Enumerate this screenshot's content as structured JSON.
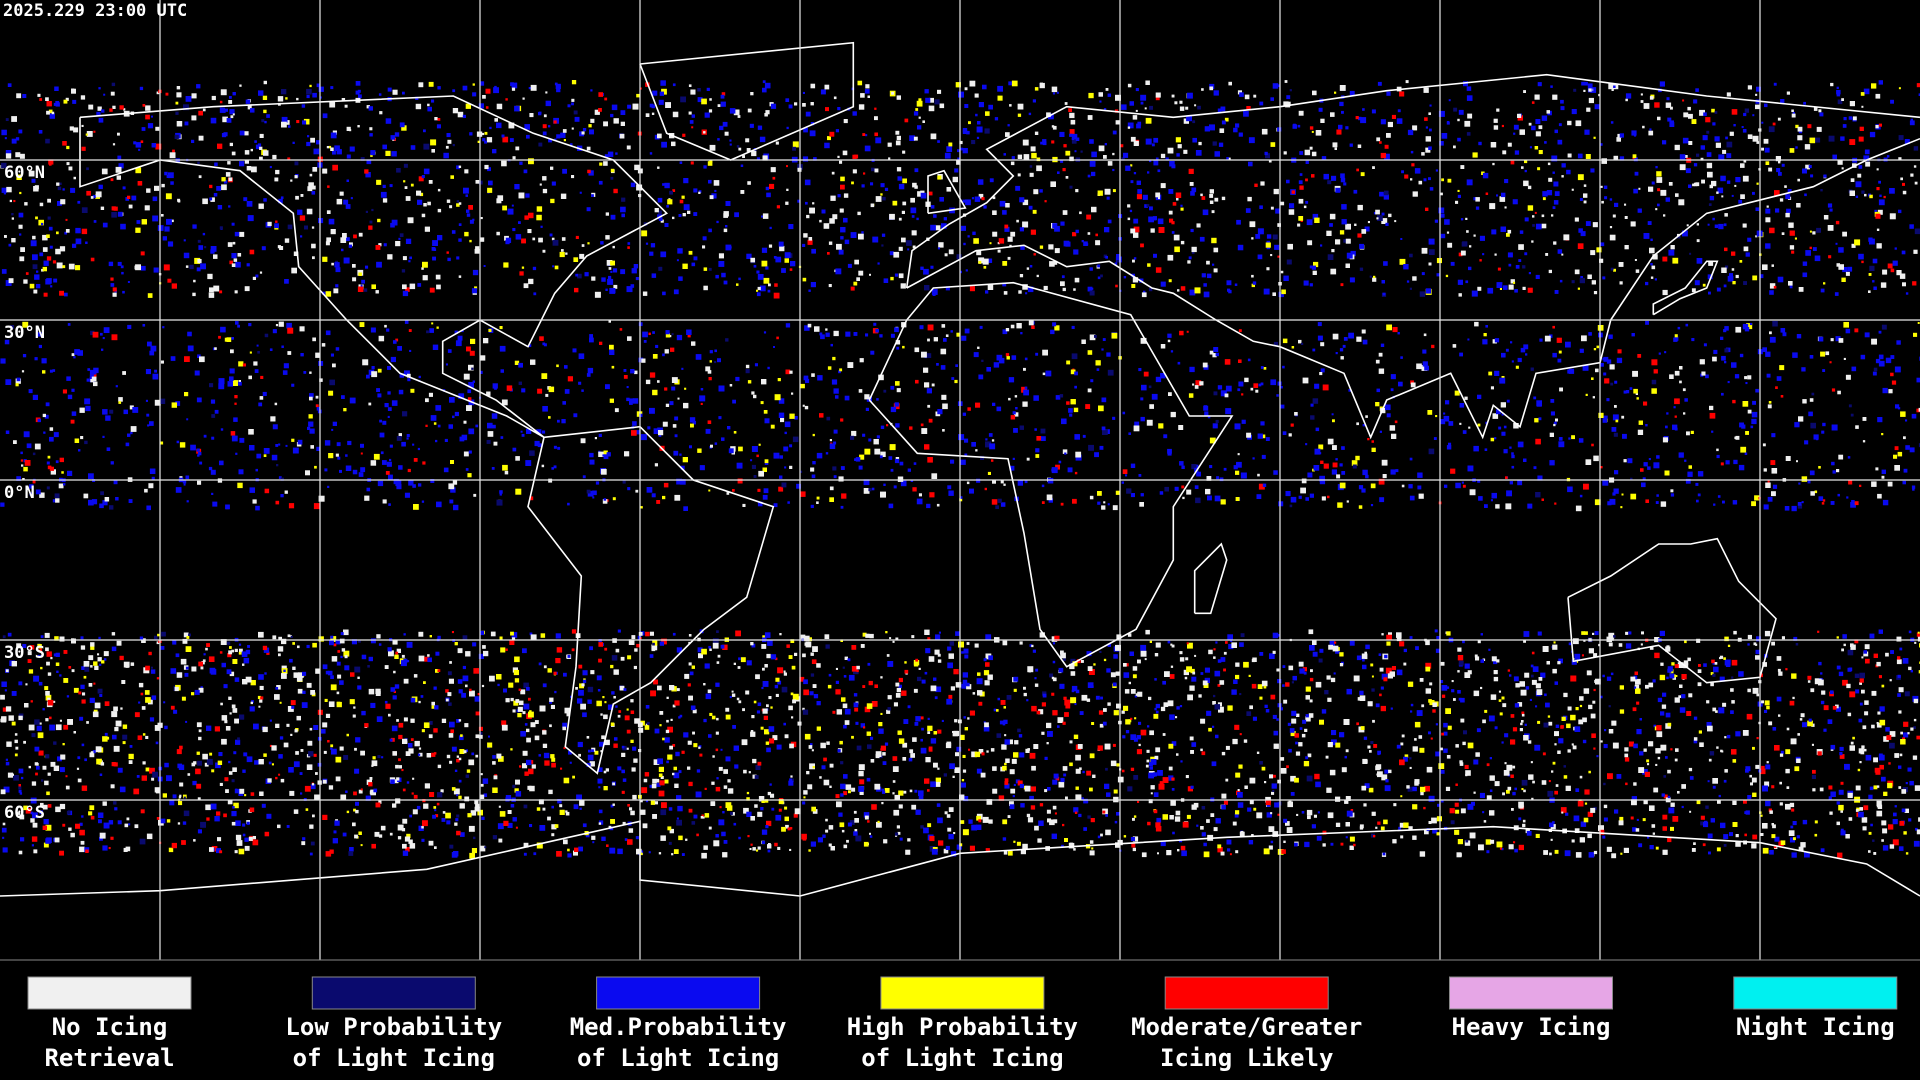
{
  "header": {
    "timestamp": "2025.229 23:00 UTC"
  },
  "map": {
    "lat_labels": [
      "60°N",
      "30°N",
      "0°N",
      "30°S",
      "60°S"
    ]
  },
  "legend": {
    "items": [
      {
        "lines": [
          "No Icing",
          "Retrieval"
        ],
        "color": "#f0f0f0"
      },
      {
        "lines": [
          "Low Probability",
          "of Light Icing"
        ],
        "color": "#0a0a6e"
      },
      {
        "lines": [
          "Med.Probability",
          "of Light Icing"
        ],
        "color": "#0a0af0"
      },
      {
        "lines": [
          "High Probability",
          "of Light Icing"
        ],
        "color": "#ffff00"
      },
      {
        "lines": [
          "Moderate/Greater",
          "Icing Likely"
        ],
        "color": "#ff0000"
      },
      {
        "lines": [
          "Heavy Icing"
        ],
        "color": "#e6a6e6"
      },
      {
        "lines": [
          "Night Icing"
        ],
        "color": "#00f0f0"
      }
    ]
  }
}
